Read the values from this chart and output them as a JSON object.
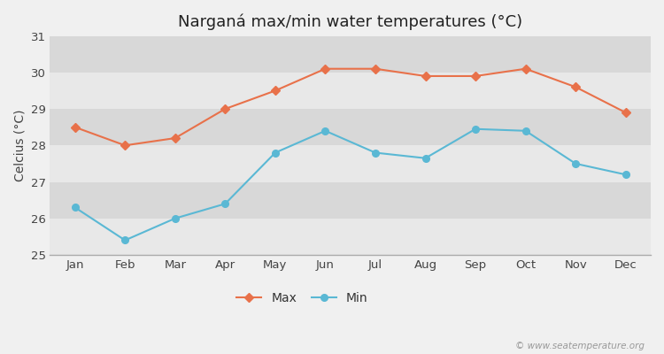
{
  "title": "Narganá max/min water temperatures (°C)",
  "ylabel": "Celcius (°C)",
  "months": [
    "Jan",
    "Feb",
    "Mar",
    "Apr",
    "May",
    "Jun",
    "Jul",
    "Aug",
    "Sep",
    "Oct",
    "Nov",
    "Dec"
  ],
  "max_values": [
    28.5,
    28.0,
    28.2,
    29.0,
    29.5,
    30.1,
    30.1,
    29.9,
    29.9,
    30.1,
    29.6,
    28.9
  ],
  "min_values": [
    26.3,
    25.4,
    26.0,
    26.4,
    27.8,
    28.4,
    27.8,
    27.65,
    28.45,
    28.4,
    27.5,
    27.2
  ],
  "max_color": "#e8714a",
  "min_color": "#5ab8d4",
  "ylim": [
    25,
    31
  ],
  "yticks": [
    25,
    26,
    27,
    28,
    29,
    30,
    31
  ],
  "fig_bg_color": "#f0f0f0",
  "band_colors": [
    "#e8e8e8",
    "#d8d8d8"
  ],
  "legend_labels": [
    "Max",
    "Min"
  ],
  "watermark": "© www.seatemperature.org",
  "title_fontsize": 13,
  "label_fontsize": 10,
  "tick_fontsize": 9.5,
  "watermark_fontsize": 7.5
}
